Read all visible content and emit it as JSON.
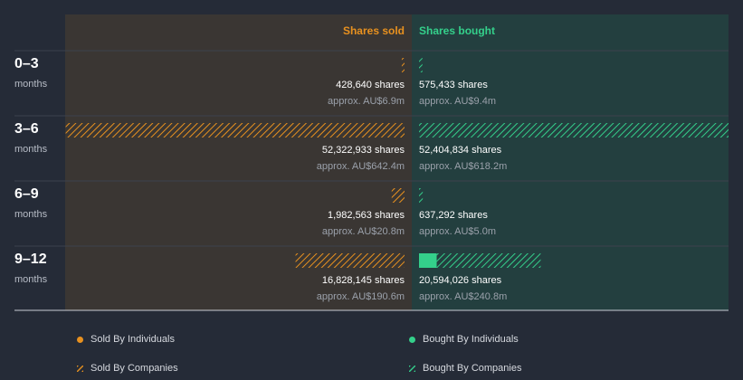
{
  "colors": {
    "sold": "#e8911f",
    "bought": "#34d08b",
    "sold_bg": "#3a3633",
    "bought_bg": "#233f3f",
    "label_bg": "#1f2430",
    "page_bg": "#252b37"
  },
  "chart_data": {
    "type": "bar",
    "orientation": "diverging-horizontal",
    "columns": {
      "sold": "Shares sold",
      "bought": "Shares bought"
    },
    "periods": [
      {
        "label": "0–3",
        "unit": "months",
        "sold": {
          "individuals": 0,
          "companies": 428640,
          "shares_text": "428,640 shares",
          "approx_text": "approx. AU$6.9m"
        },
        "bought": {
          "individuals": 0,
          "companies": 575433,
          "shares_text": "575,433 shares",
          "approx_text": "approx. AU$9.4m"
        }
      },
      {
        "label": "3–6",
        "unit": "months",
        "sold": {
          "individuals": 0,
          "companies": 52322933,
          "shares_text": "52,322,933 shares",
          "approx_text": "approx. AU$642.4m"
        },
        "bought": {
          "individuals": 0,
          "companies": 52404834,
          "shares_text": "52,404,834 shares",
          "approx_text": "approx. AU$618.2m"
        }
      },
      {
        "label": "6–9",
        "unit": "months",
        "sold": {
          "individuals": 0,
          "companies": 1982563,
          "shares_text": "1,982,563 shares",
          "approx_text": "approx. AU$20.8m"
        },
        "bought": {
          "individuals": 0,
          "companies": 637292,
          "shares_text": "637,292 shares",
          "approx_text": "approx. AU$5.0m"
        }
      },
      {
        "label": "9–12",
        "unit": "months",
        "sold": {
          "individuals": 0,
          "companies": 16828145,
          "shares_text": "16,828,145 shares",
          "approx_text": "approx. AU$190.6m"
        },
        "bought": {
          "individuals": 3000000,
          "companies": 17594026,
          "shares_text": "20,594,026 shares",
          "approx_text": "approx. AU$240.8m"
        }
      }
    ],
    "max_value": 52404834,
    "legend": [
      {
        "label": "Sold By Individuals",
        "style": "solid",
        "color": "#e8911f"
      },
      {
        "label": "Bought By Individuals",
        "style": "solid",
        "color": "#34d08b"
      },
      {
        "label": "Sold By Companies",
        "style": "hatched",
        "color": "#e8911f"
      },
      {
        "label": "Bought By Companies",
        "style": "hatched",
        "color": "#34d08b"
      }
    ]
  }
}
